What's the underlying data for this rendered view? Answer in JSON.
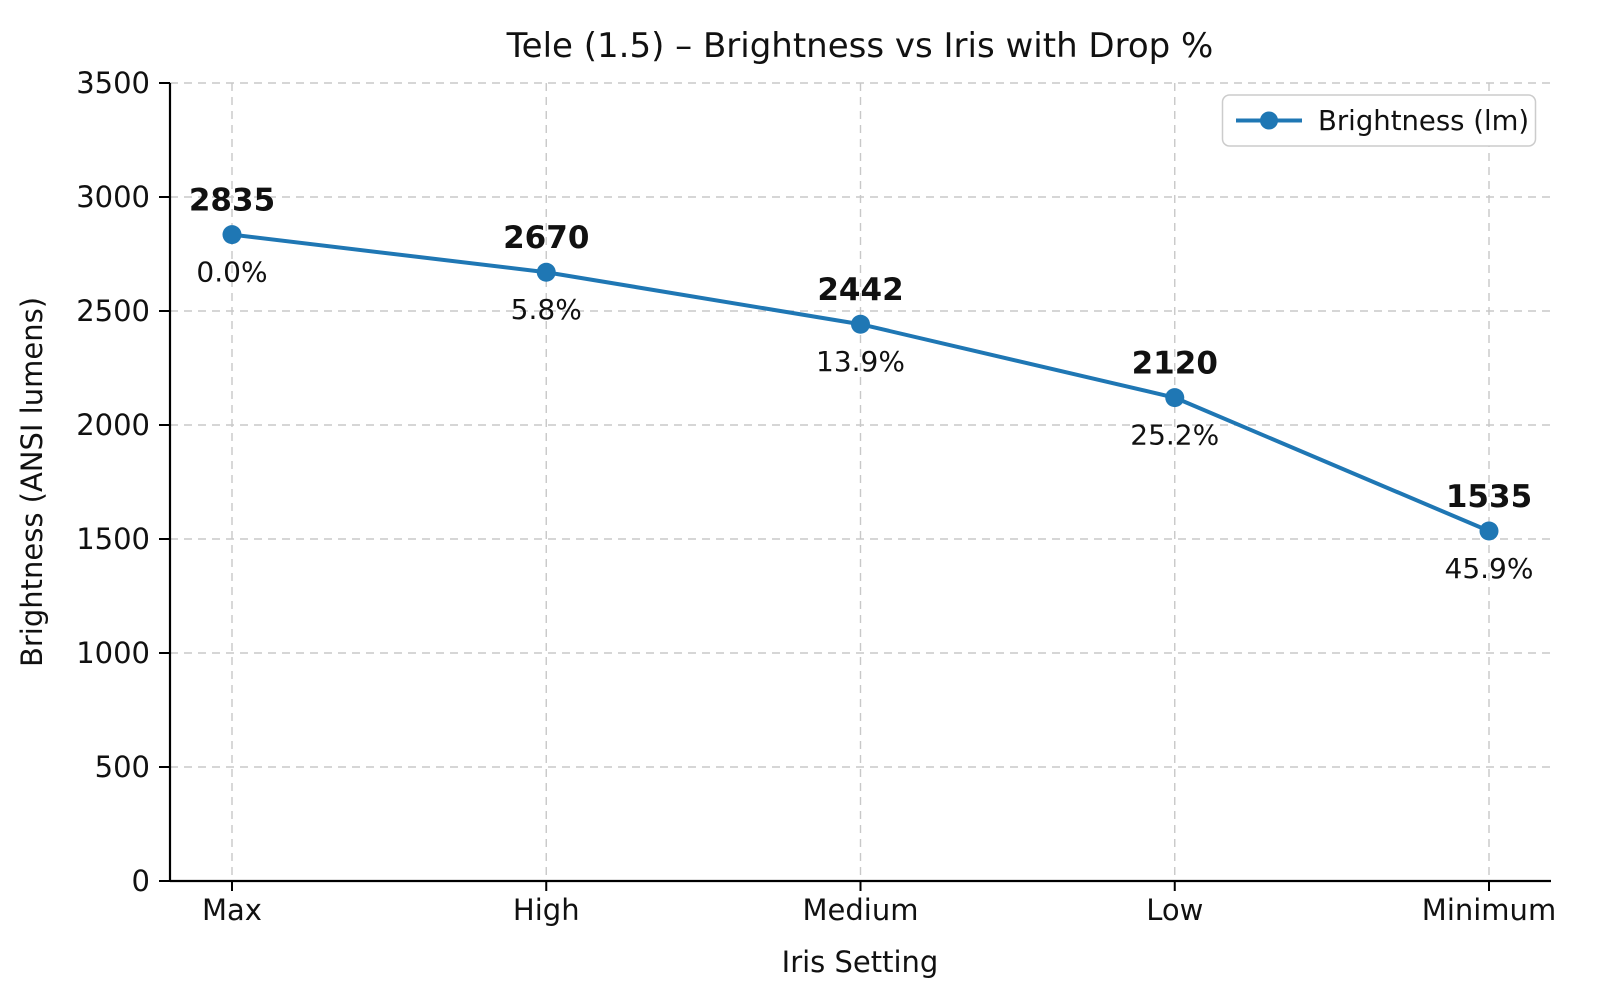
{
  "chart_data": {
    "type": "line",
    "title": "Tele (1.5) – Brightness vs Iris with Drop %",
    "xlabel": "Iris Setting",
    "ylabel": "Brightness (ANSI lumens)",
    "categories": [
      "Max",
      "High",
      "Medium",
      "Low",
      "Minimum"
    ],
    "series": [
      {
        "name": "Brightness (lm)",
        "values": [
          2835,
          2670,
          2442,
          2120,
          1535
        ]
      }
    ],
    "annotations": {
      "value_labels": [
        "2835",
        "2670",
        "2442",
        "2120",
        "1535"
      ],
      "drop_percent_labels": [
        "0.0%",
        "5.8%",
        "13.9%",
        "25.2%",
        "45.9%"
      ]
    },
    "ylim": [
      0,
      3500
    ],
    "yticks": [
      0,
      500,
      1000,
      1500,
      2000,
      2500,
      3000,
      3500
    ],
    "grid": "dashed-both-axes",
    "legend": {
      "label": "Brightness (lm)",
      "position": "upper right"
    },
    "colors": {
      "line": "#1f77b4",
      "marker": "#1f77b4",
      "value_label": "#1f77b4",
      "drop_label": "#ff0000",
      "grid": "#c8c8c8",
      "axis": "#000000",
      "tick_text": "#111111",
      "legend_border": "#cccccc",
      "background": "#ffffff"
    }
  }
}
